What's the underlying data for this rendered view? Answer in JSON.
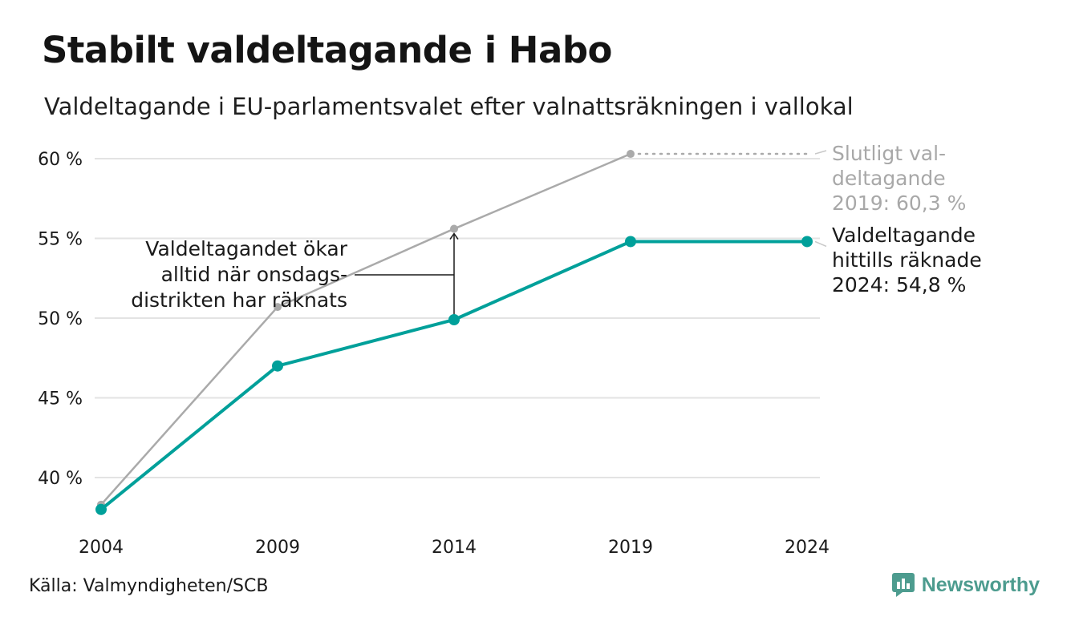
{
  "header": {
    "title": "Stabilt valdeltagande i Habo",
    "subtitle": "Valdeltagande i EU-parlamentsvalet efter valnattsräkningen i vallokal"
  },
  "footer": {
    "source": "Källa: Valmyndigheten/SCB",
    "brand": "Newsworthy",
    "brand_icon": "newsworthy-logo-icon"
  },
  "colors": {
    "preliminary": "#00a09a",
    "final": "#aaaaaa",
    "grid": "#e3e3e3"
  },
  "chart_data": {
    "type": "line",
    "title": "Stabilt valdeltagande i Habo",
    "subtitle": "Valdeltagande i EU-parlamentsvalet efter valnattsräkningen i vallokal",
    "x": [
      "2004",
      "2009",
      "2014",
      "2019",
      "2024"
    ],
    "ylim": [
      37,
      61
    ],
    "yticks": [
      40,
      45,
      50,
      55,
      60
    ],
    "ytick_labels": [
      "40 %",
      "45 %",
      "50 %",
      "55 %",
      "60 %"
    ],
    "grid": true,
    "series": [
      {
        "role": "final",
        "values": [
          38.3,
          50.7,
          55.6,
          60.3,
          null
        ]
      },
      {
        "role": "preliminary",
        "values": [
          38.0,
          47.0,
          49.9,
          54.8,
          54.8
        ]
      }
    ],
    "annotations": {
      "middle": [
        "Valdeltagandet ökar",
        "alltid när onsdags-",
        "distrikten har räknats"
      ],
      "final_label": [
        "Slutligt val-",
        "deltagande",
        "2019: 60,3 %"
      ],
      "preliminary_label": [
        "Valdeltagande",
        "hittills räknade",
        "2024: 54,8 %"
      ]
    }
  }
}
